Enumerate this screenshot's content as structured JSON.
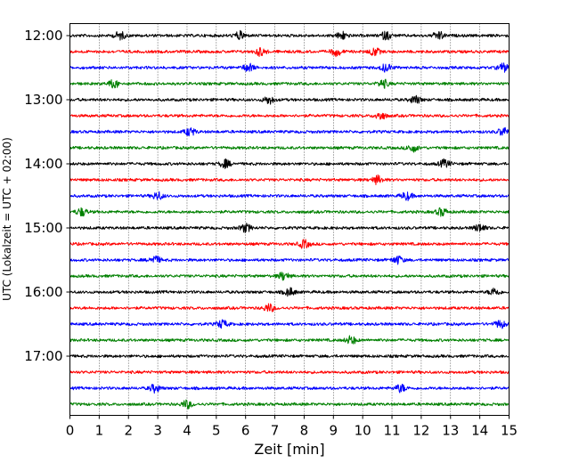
{
  "chart_data": {
    "type": "line",
    "title": "",
    "xlabel": "Zeit  [min]",
    "ylabel": "UTC (Lokalzeit = UTC + 02:00)",
    "xlim": [
      0,
      15
    ],
    "x_ticks": [
      "0",
      "1",
      "2",
      "3",
      "4",
      "5",
      "6",
      "7",
      "8",
      "9",
      "10",
      "11",
      "12",
      "13",
      "14",
      "15"
    ],
    "y_tick_labels": [
      "12:00",
      "13:00",
      "14:00",
      "15:00",
      "16:00",
      "17:00"
    ],
    "grid": "vertical dotted",
    "colors": [
      "#000000",
      "#ff0000",
      "#0000ff",
      "#008000"
    ],
    "series": [
      {
        "start": "12:00",
        "color": "#000000",
        "bursts": [
          1.7,
          5.8,
          9.3,
          10.8,
          12.6
        ]
      },
      {
        "start": "12:15",
        "color": "#ff0000",
        "bursts": [
          6.5,
          9.1,
          10.4
        ]
      },
      {
        "start": "12:30",
        "color": "#0000ff",
        "bursts": [
          6.1,
          10.8,
          14.8
        ]
      },
      {
        "start": "12:45",
        "color": "#008000",
        "bursts": [
          1.5,
          10.7
        ]
      },
      {
        "start": "13:00",
        "color": "#000000",
        "bursts": [
          6.8,
          11.8
        ]
      },
      {
        "start": "13:15",
        "color": "#ff0000",
        "bursts": [
          10.6
        ]
      },
      {
        "start": "13:30",
        "color": "#0000ff",
        "bursts": [
          4.1,
          14.8
        ]
      },
      {
        "start": "13:45",
        "color": "#008000",
        "bursts": [
          11.7
        ]
      },
      {
        "start": "14:00",
        "color": "#000000",
        "bursts": [
          5.3,
          12.8
        ]
      },
      {
        "start": "14:15",
        "color": "#ff0000",
        "bursts": [
          10.5
        ]
      },
      {
        "start": "14:30",
        "color": "#0000ff",
        "bursts": [
          3.0,
          11.5
        ]
      },
      {
        "start": "14:45",
        "color": "#008000",
        "bursts": [
          0.4,
          12.7
        ]
      },
      {
        "start": "15:00",
        "color": "#000000",
        "bursts": [
          6.0,
          14.0
        ]
      },
      {
        "start": "15:15",
        "color": "#ff0000",
        "bursts": [
          8.0
        ]
      },
      {
        "start": "15:30",
        "color": "#0000ff",
        "bursts": [
          2.9,
          11.2
        ]
      },
      {
        "start": "15:45",
        "color": "#008000",
        "bursts": [
          7.3
        ]
      },
      {
        "start": "16:00",
        "color": "#000000",
        "bursts": [
          7.5,
          14.5
        ]
      },
      {
        "start": "16:15",
        "color": "#ff0000",
        "bursts": [
          6.8
        ]
      },
      {
        "start": "16:30",
        "color": "#0000ff",
        "bursts": [
          5.2,
          14.7
        ]
      },
      {
        "start": "16:45",
        "color": "#008000",
        "bursts": [
          9.6
        ]
      },
      {
        "start": "17:00",
        "color": "#000000",
        "bursts": []
      },
      {
        "start": "17:15",
        "color": "#ff0000",
        "bursts": []
      },
      {
        "start": "17:30",
        "color": "#0000ff",
        "bursts": [
          2.9,
          11.3
        ]
      },
      {
        "start": "17:45",
        "color": "#008000",
        "bursts": [
          4.0
        ]
      }
    ]
  }
}
